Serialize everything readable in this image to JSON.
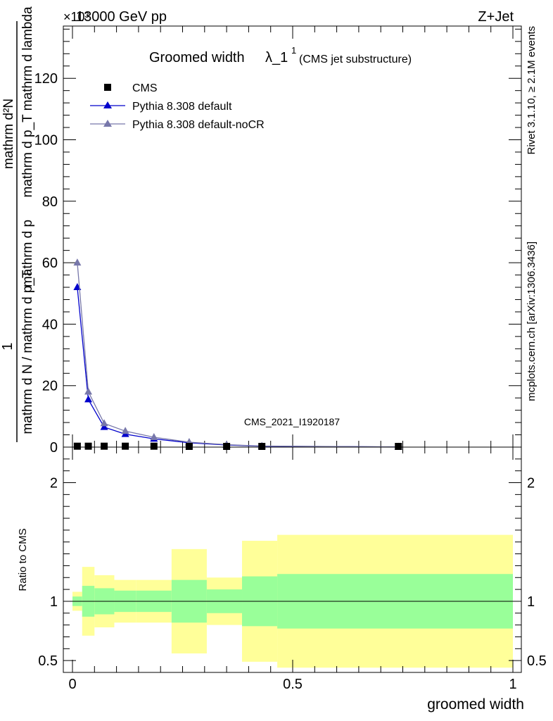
{
  "header": {
    "energy": "13000 GeV pp",
    "process": "Z+Jet",
    "scale": "×10³"
  },
  "side_labels": {
    "rivet": "Rivet 3.1.10, ≥ 2.1M events",
    "source": "mcplots.cern.ch [arXiv:1306.3436]"
  },
  "chart_data": {
    "type": "line",
    "title_main": "Groomed width",
    "title_symbol": "λ_1",
    "title_sup": "1",
    "title_sub": "(CMS jet substructure)",
    "ylabel_fraction_numerator": "1",
    "ylabel_denominator": "mathrm d N / mathrm d p_T",
    "ylabel_numerator": "mathrm d²N",
    "ylabel_rest": "mathrm d p_T mathrm d lambda",
    "ylabel_main_text": "1 mathrm d N / mathrm d p_T mathrm d p_T mathrm d lambda",
    "xlabel": "groomed width",
    "ratio_ylabel": "Ratio to CMS",
    "watermark": "CMS_2021_I1920187",
    "xlim": [
      0,
      1
    ],
    "ylim": [
      0,
      137
    ],
    "ratio_ylim": [
      0.4,
      2.3
    ],
    "x_ticks": [
      {
        "v": 0,
        "label": "0"
      },
      {
        "v": 0.5,
        "label": "0.5"
      },
      {
        "v": 1,
        "label": "1"
      }
    ],
    "y_ticks": [
      {
        "v": 0,
        "label": "0"
      },
      {
        "v": 20,
        "label": "20"
      },
      {
        "v": 40,
        "label": "40"
      },
      {
        "v": 60,
        "label": "60"
      },
      {
        "v": 80,
        "label": "80"
      },
      {
        "v": 100,
        "label": "100"
      },
      {
        "v": 120,
        "label": "120"
      }
    ],
    "ratio_ticks": [
      {
        "v": 0.5,
        "label": "0.5"
      },
      {
        "v": 1,
        "label": "1"
      },
      {
        "v": 2,
        "label": "2"
      }
    ],
    "legend": [
      {
        "label": "CMS",
        "color": "#000000",
        "marker": "square"
      },
      {
        "label": "Pythia 8.308 default",
        "color": "#0000cc",
        "marker": "triangle"
      },
      {
        "label": "Pythia 8.308 default-noCR",
        "color": "#7777aa",
        "marker": "triangle"
      }
    ],
    "data_points": {
      "x": [
        0.011,
        0.036,
        0.072,
        0.12,
        0.185,
        0.265,
        0.35,
        0.43,
        0.74
      ],
      "y": [
        0.3,
        0.3,
        0.3,
        0.3,
        0.3,
        0.2,
        0.1,
        0.05,
        0.02
      ]
    },
    "series": [
      {
        "name": "Pythia 8.308 default",
        "x": [
          0.011,
          0.036,
          0.072,
          0.12,
          0.185,
          0.265,
          0.35,
          0.43,
          0.74
        ],
        "y": [
          52.0,
          15.5,
          6.5,
          4.2,
          2.7,
          1.4,
          0.7,
          0.3,
          0.05
        ]
      },
      {
        "name": "Pythia 8.308 default-noCR",
        "x": [
          0.011,
          0.036,
          0.072,
          0.12,
          0.185,
          0.265,
          0.35,
          0.43,
          0.74
        ],
        "y": [
          60.0,
          18.0,
          7.7,
          5.2,
          3.2,
          1.6,
          0.8,
          0.35,
          0.06
        ]
      }
    ],
    "ratio_bands": [
      {
        "x0": 0.0,
        "x1": 0.022,
        "y_in_lo": 0.96,
        "y_in_hi": 1.04,
        "y_out_lo": 0.92,
        "y_out_hi": 1.08
      },
      {
        "x0": 0.022,
        "x1": 0.05,
        "y_in_lo": 0.87,
        "y_in_hi": 1.13,
        "y_out_lo": 0.71,
        "y_out_hi": 1.29
      },
      {
        "x0": 0.05,
        "x1": 0.095,
        "y_in_lo": 0.89,
        "y_in_hi": 1.11,
        "y_out_lo": 0.78,
        "y_out_hi": 1.22
      },
      {
        "x0": 0.095,
        "x1": 0.145,
        "y_in_lo": 0.91,
        "y_in_hi": 1.09,
        "y_out_lo": 0.82,
        "y_out_hi": 1.18
      },
      {
        "x0": 0.145,
        "x1": 0.225,
        "y_in_lo": 0.91,
        "y_in_hi": 1.09,
        "y_out_lo": 0.82,
        "y_out_hi": 1.18
      },
      {
        "x0": 0.225,
        "x1": 0.305,
        "y_in_lo": 0.82,
        "y_in_hi": 1.18,
        "y_out_lo": 0.56,
        "y_out_hi": 1.44
      },
      {
        "x0": 0.305,
        "x1": 0.385,
        "y_in_lo": 0.9,
        "y_in_hi": 1.1,
        "y_out_lo": 0.8,
        "y_out_hi": 1.2
      },
      {
        "x0": 0.385,
        "x1": 0.465,
        "y_in_lo": 0.79,
        "y_in_hi": 1.21,
        "y_out_lo": 0.49,
        "y_out_hi": 1.51
      },
      {
        "x0": 0.465,
        "x1": 1.0,
        "y_in_lo": 0.77,
        "y_in_hi": 1.23,
        "y_out_lo": 0.44,
        "y_out_hi": 1.56
      }
    ],
    "colors": {
      "band_outer": "#ffff99",
      "band_inner": "#99ff99",
      "ratio_line": "#000000"
    }
  }
}
